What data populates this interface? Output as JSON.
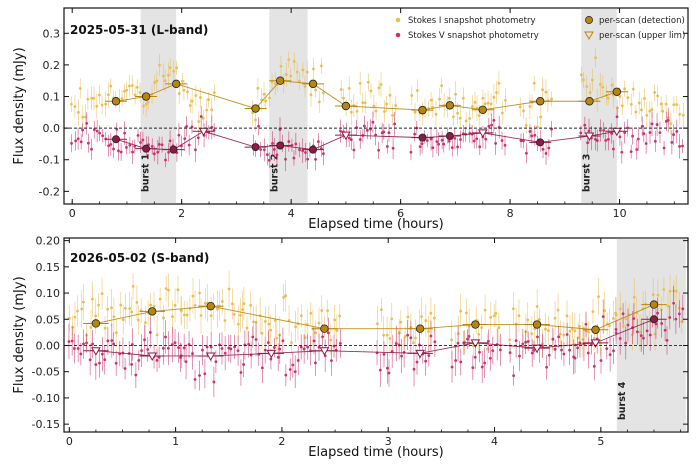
{
  "chart_data": [
    {
      "type": "scatter",
      "title": "2025-05-31 (L-band)",
      "xlabel": "Elapsed time (hours)",
      "ylabel": "Flux density (mJy)",
      "xlim": [
        -0.15,
        11.25
      ],
      "ylim": [
        -0.24,
        0.38
      ],
      "xticks": [
        0,
        2,
        4,
        6,
        8,
        10
      ],
      "yticks": [
        -0.2,
        -0.1,
        0.0,
        0.1,
        0.2,
        0.3
      ],
      "ytick_labels": [
        "-0.2",
        "-0.1",
        "0.0",
        "0.1",
        "0.2",
        "0.3"
      ],
      "zero_line": true,
      "legend": [
        "Stokes I  snapshot photometry",
        "Stokes V  snapshot photometry",
        "per-scan (detection)",
        "per-scan (upper lim)"
      ],
      "legend_position": "top-right",
      "segments": [
        [
          0.0,
          2.6
        ],
        [
          3.3,
          4.6
        ],
        [
          4.9,
          5.9
        ],
        [
          6.2,
          7.9
        ],
        [
          8.2,
          8.8
        ],
        [
          9.3,
          11.2
        ]
      ],
      "bursts": [
        {
          "label": "burst 1",
          "x0": 1.25,
          "x1": 1.9
        },
        {
          "label": "burst 2",
          "x0": 3.6,
          "x1": 4.3
        },
        {
          "label": "burst 3",
          "x0": 9.3,
          "x1": 9.95
        }
      ],
      "series": [
        {
          "name": "Stokes I per-scan",
          "kind": "detection",
          "points": [
            {
              "x": 0.8,
              "y": 0.085
            },
            {
              "x": 1.35,
              "y": 0.1
            },
            {
              "x": 1.9,
              "y": 0.14
            },
            {
              "x": 3.35,
              "y": 0.062
            },
            {
              "x": 3.8,
              "y": 0.15
            },
            {
              "x": 4.4,
              "y": 0.14
            },
            {
              "x": 5.0,
              "y": 0.07
            },
            {
              "x": 6.4,
              "y": 0.057
            },
            {
              "x": 6.9,
              "y": 0.072
            },
            {
              "x": 7.5,
              "y": 0.058
            },
            {
              "x": 8.55,
              "y": 0.085
            },
            {
              "x": 9.45,
              "y": 0.085
            },
            {
              "x": 9.95,
              "y": 0.115
            }
          ]
        },
        {
          "name": "Stokes V per-scan",
          "points": [
            {
              "x": 0.8,
              "y": -0.035,
              "kind": "detection"
            },
            {
              "x": 1.35,
              "y": -0.065,
              "kind": "detection"
            },
            {
              "x": 1.85,
              "y": -0.068,
              "kind": "detection"
            },
            {
              "x": 2.4,
              "y": -0.01,
              "kind": "upper_limit"
            },
            {
              "x": 3.35,
              "y": -0.06,
              "kind": "detection"
            },
            {
              "x": 3.8,
              "y": -0.055,
              "kind": "detection"
            },
            {
              "x": 4.4,
              "y": -0.068,
              "kind": "detection"
            },
            {
              "x": 5.0,
              "y": -0.022,
              "kind": "upper_limit"
            },
            {
              "x": 6.4,
              "y": -0.03,
              "kind": "detection"
            },
            {
              "x": 6.9,
              "y": -0.025,
              "kind": "detection"
            },
            {
              "x": 7.5,
              "y": -0.015,
              "kind": "upper_limit"
            },
            {
              "x": 8.55,
              "y": -0.045,
              "kind": "detection"
            },
            {
              "x": 9.45,
              "y": -0.025,
              "kind": "upper_limit"
            },
            {
              "x": 9.95,
              "y": -0.01,
              "kind": "upper_limit"
            }
          ]
        },
        {
          "name": "Stokes I snapshot photometry (envelope)",
          "points": [
            {
              "x": 0.2,
              "y": 0.07
            },
            {
              "x": 1.3,
              "y": 0.1
            },
            {
              "x": 1.6,
              "y": 0.2
            },
            {
              "x": 1.9,
              "y": 0.14
            },
            {
              "x": 2.5,
              "y": 0.06
            },
            {
              "x": 3.4,
              "y": 0.06
            },
            {
              "x": 3.9,
              "y": 0.2
            },
            {
              "x": 4.5,
              "y": 0.13
            },
            {
              "x": 5.5,
              "y": 0.07
            },
            {
              "x": 7.0,
              "y": 0.07
            },
            {
              "x": 8.5,
              "y": 0.08
            },
            {
              "x": 9.6,
              "y": 0.15
            },
            {
              "x": 10.5,
              "y": 0.08
            },
            {
              "x": 11.1,
              "y": 0.06
            }
          ]
        },
        {
          "name": "Stokes V snapshot photometry (envelope)",
          "points": [
            {
              "x": 0.2,
              "y": -0.02
            },
            {
              "x": 1.4,
              "y": -0.07
            },
            {
              "x": 2.4,
              "y": -0.01
            },
            {
              "x": 3.5,
              "y": -0.06
            },
            {
              "x": 4.4,
              "y": -0.07
            },
            {
              "x": 5.5,
              "y": -0.02
            },
            {
              "x": 7.0,
              "y": -0.03
            },
            {
              "x": 8.5,
              "y": -0.045
            },
            {
              "x": 9.6,
              "y": -0.02
            },
            {
              "x": 11.1,
              "y": -0.02
            }
          ]
        }
      ]
    },
    {
      "type": "scatter",
      "title": "2026-05-02 (S-band)",
      "xlabel": "Elapsed time (hours)",
      "ylabel": "Flux density (mJy)",
      "xlim": [
        -0.05,
        5.82
      ],
      "ylim": [
        -0.165,
        0.205
      ],
      "xticks": [
        0,
        1,
        2,
        3,
        4,
        5
      ],
      "yticks": [
        -0.15,
        -0.1,
        -0.05,
        0.0,
        0.05,
        0.1,
        0.15,
        0.2
      ],
      "ytick_labels": [
        "-0.15",
        "-0.10",
        "-0.05",
        "0.00",
        "0.05",
        "0.10",
        "0.15",
        "0.20"
      ],
      "zero_line": true,
      "segments": [
        [
          0.0,
          0.6
        ],
        [
          0.6,
          1.05
        ],
        [
          1.05,
          1.65
        ],
        [
          1.65,
          2.55
        ],
        [
          2.9,
          3.45
        ],
        [
          3.6,
          4.05
        ],
        [
          4.15,
          4.75
        ],
        [
          4.75,
          5.15
        ],
        [
          5.15,
          5.78
        ]
      ],
      "bursts": [
        {
          "label": "burst 4",
          "x0": 5.15,
          "x1": 5.8
        }
      ],
      "series": [
        {
          "name": "Stokes I per-scan",
          "kind": "detection",
          "points": [
            {
              "x": 0.25,
              "y": 0.042
            },
            {
              "x": 0.78,
              "y": 0.065
            },
            {
              "x": 1.33,
              "y": 0.075
            },
            {
              "x": 2.4,
              "y": 0.032
            },
            {
              "x": 3.3,
              "y": 0.032
            },
            {
              "x": 3.82,
              "y": 0.04
            },
            {
              "x": 4.4,
              "y": 0.04
            },
            {
              "x": 4.95,
              "y": 0.03
            },
            {
              "x": 5.5,
              "y": 0.078
            }
          ]
        },
        {
          "name": "Stokes V per-scan",
          "points": [
            {
              "x": 0.25,
              "y": -0.01,
              "kind": "upper_limit"
            },
            {
              "x": 0.78,
              "y": -0.02,
              "kind": "upper_limit"
            },
            {
              "x": 1.33,
              "y": -0.02,
              "kind": "upper_limit"
            },
            {
              "x": 1.9,
              "y": -0.015,
              "kind": "upper_limit"
            },
            {
              "x": 2.4,
              "y": -0.01,
              "kind": "upper_limit"
            },
            {
              "x": 3.3,
              "y": -0.015,
              "kind": "upper_limit"
            },
            {
              "x": 3.82,
              "y": 0.005,
              "kind": "upper_limit"
            },
            {
              "x": 4.4,
              "y": -0.005,
              "kind": "upper_limit"
            },
            {
              "x": 4.95,
              "y": 0.005,
              "kind": "upper_limit"
            },
            {
              "x": 5.5,
              "y": 0.05,
              "kind": "detection"
            }
          ]
        },
        {
          "name": "Stokes I snapshot photometry (envelope)",
          "points": [
            {
              "x": 0.1,
              "y": 0.045
            },
            {
              "x": 0.8,
              "y": 0.065
            },
            {
              "x": 1.35,
              "y": 0.075
            },
            {
              "x": 2.0,
              "y": 0.04
            },
            {
              "x": 2.4,
              "y": 0.035
            },
            {
              "x": 3.3,
              "y": 0.03
            },
            {
              "x": 4.4,
              "y": 0.04
            },
            {
              "x": 5.0,
              "y": 0.035
            },
            {
              "x": 5.5,
              "y": 0.08
            },
            {
              "x": 5.75,
              "y": 0.075
            }
          ]
        },
        {
          "name": "Stokes V snapshot photometry (envelope)",
          "points": [
            {
              "x": 0.1,
              "y": -0.01
            },
            {
              "x": 1.3,
              "y": -0.02
            },
            {
              "x": 2.4,
              "y": -0.01
            },
            {
              "x": 3.3,
              "y": -0.015
            },
            {
              "x": 4.4,
              "y": -0.005
            },
            {
              "x": 5.0,
              "y": 0.005
            },
            {
              "x": 5.5,
              "y": 0.05
            },
            {
              "x": 5.75,
              "y": 0.05
            }
          ]
        }
      ]
    }
  ],
  "colors": {
    "stokes_i": "#e8bf55",
    "stokes_i_marker": "#b8860b",
    "stokes_v": "#c8336e",
    "stokes_v_marker": "#8e1a47",
    "burst_band": "#e4e4e4"
  }
}
